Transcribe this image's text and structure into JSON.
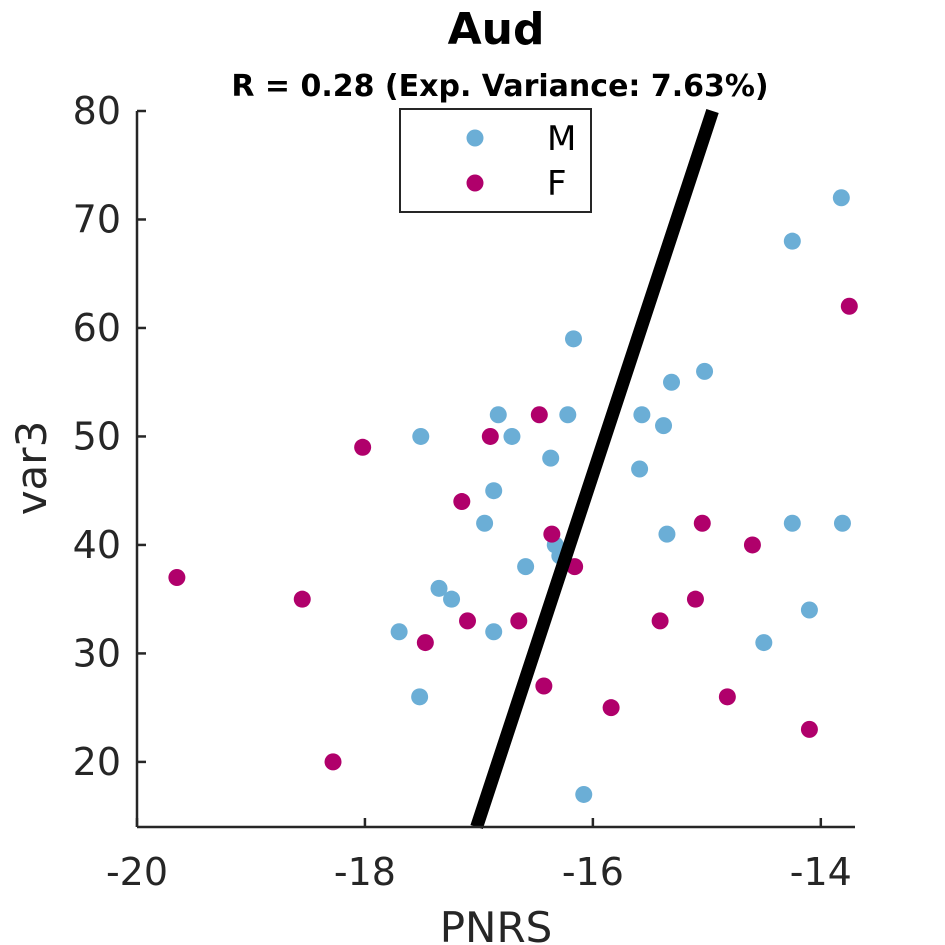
{
  "chart_data": {
    "type": "scatter",
    "title": "Aud",
    "subtitle": "R = 0.28 (Exp. Variance: 7.63%)",
    "xlabel": "PNRS",
    "ylabel": "var3",
    "xlim": [
      -20,
      -13.7
    ],
    "ylim": [
      14,
      80
    ],
    "xticks": [
      -20,
      -18,
      -16,
      -14
    ],
    "yticks": [
      20,
      30,
      40,
      50,
      60,
      70,
      80
    ],
    "grid": false,
    "legend_position": "top-center",
    "series": [
      {
        "name": "M",
        "color": "#6baed6",
        "points": [
          [
            -17.51,
            50
          ],
          [
            -17.7,
            32
          ],
          [
            -17.52,
            26
          ],
          [
            -17.35,
            36
          ],
          [
            -17.24,
            35
          ],
          [
            -16.95,
            42
          ],
          [
            -16.87,
            45
          ],
          [
            -16.83,
            52
          ],
          [
            -16.71,
            50
          ],
          [
            -16.87,
            32
          ],
          [
            -16.59,
            38
          ],
          [
            -16.37,
            48
          ],
          [
            -16.33,
            40
          ],
          [
            -16.29,
            39
          ],
          [
            -16.22,
            52
          ],
          [
            -16.17,
            59
          ],
          [
            -16.08,
            17
          ],
          [
            -15.57,
            52
          ],
          [
            -15.59,
            47
          ],
          [
            -15.38,
            51
          ],
          [
            -15.31,
            55
          ],
          [
            -15.35,
            41
          ],
          [
            -15.02,
            56
          ],
          [
            -14.5,
            31
          ],
          [
            -14.25,
            68
          ],
          [
            -14.25,
            42
          ],
          [
            -14.1,
            34
          ],
          [
            -13.82,
            72
          ],
          [
            -13.81,
            42
          ]
        ]
      },
      {
        "name": "F",
        "color": "#b0006b",
        "points": [
          [
            -19.65,
            37
          ],
          [
            -18.55,
            35
          ],
          [
            -18.28,
            20
          ],
          [
            -18.02,
            49
          ],
          [
            -17.47,
            31
          ],
          [
            -17.15,
            44
          ],
          [
            -17.1,
            33
          ],
          [
            -16.9,
            50
          ],
          [
            -16.65,
            33
          ],
          [
            -16.47,
            52
          ],
          [
            -16.43,
            27
          ],
          [
            -16.36,
            41
          ],
          [
            -16.16,
            38
          ],
          [
            -15.84,
            25
          ],
          [
            -15.41,
            33
          ],
          [
            -15.1,
            35
          ],
          [
            -15.04,
            42
          ],
          [
            -14.82,
            26
          ],
          [
            -14.6,
            40
          ],
          [
            -14.1,
            23
          ],
          [
            -13.75,
            62
          ]
        ]
      }
    ],
    "fit_line": {
      "color": "#000000",
      "x": [
        -17.02,
        -14.95
      ],
      "y": [
        14,
        80
      ]
    }
  }
}
